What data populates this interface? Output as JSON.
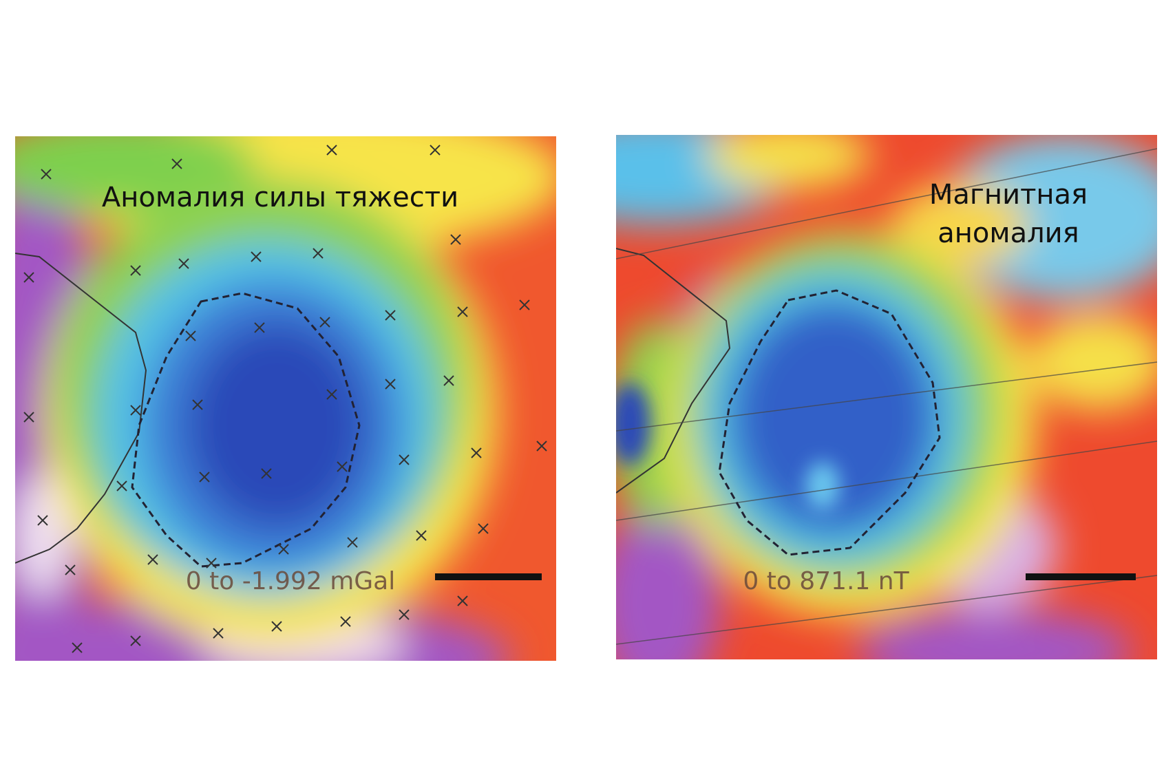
{
  "panels": [
    {
      "title": "Аномалия силы тяжести",
      "range": "0 to -1.992 mGal"
    },
    {
      "title_lines": [
        "Магнитная",
        "аномалия"
      ],
      "range": "0 to 871.1 nT"
    }
  ]
}
